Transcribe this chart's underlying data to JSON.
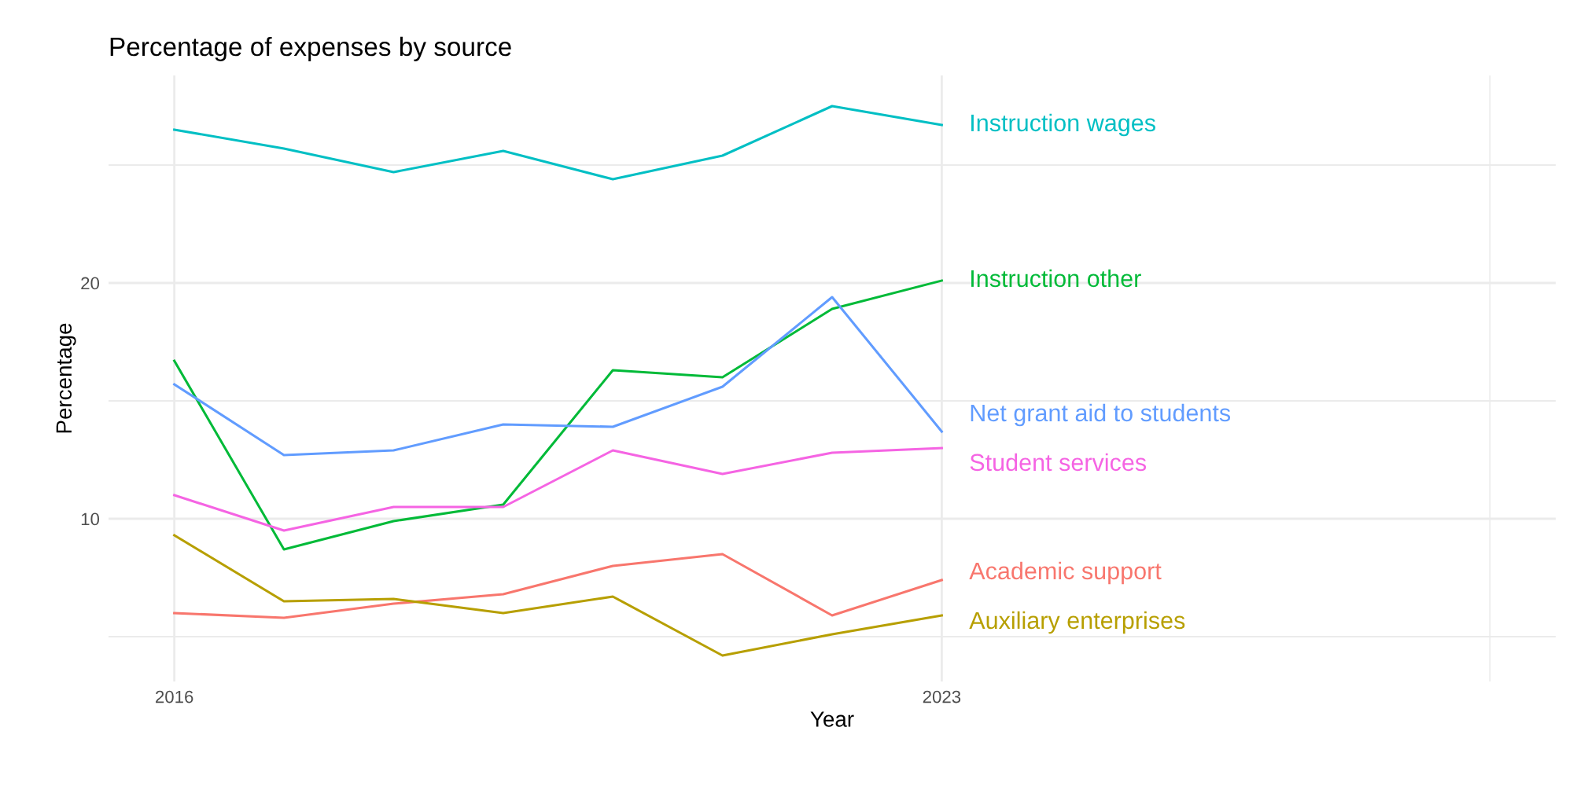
{
  "chart_data": {
    "type": "line",
    "title": "Percentage of expenses by source",
    "xlabel": "Year",
    "ylabel": "Percentage",
    "x": [
      2016,
      2017,
      2018,
      2019,
      2020,
      2021,
      2022,
      2023
    ],
    "series": [
      {
        "name": "Instruction wages",
        "color": "#00bfc4",
        "values": [
          26.5,
          25.7,
          24.7,
          25.6,
          24.4,
          25.4,
          27.5,
          26.7
        ]
      },
      {
        "name": "Instruction other",
        "color": "#00ba38",
        "values": [
          16.7,
          8.7,
          9.9,
          10.6,
          16.3,
          16.0,
          18.9,
          20.1
        ]
      },
      {
        "name": "Net grant aid to students",
        "color": "#619cff",
        "values": [
          15.7,
          12.7,
          12.9,
          14.0,
          13.9,
          15.6,
          19.4,
          13.7
        ]
      },
      {
        "name": "Student services",
        "color": "#f564e3",
        "values": [
          11.0,
          9.5,
          10.5,
          10.5,
          12.9,
          11.9,
          12.8,
          13.0
        ]
      },
      {
        "name": "Academic support",
        "color": "#f8766d",
        "values": [
          6.0,
          5.8,
          6.4,
          6.8,
          8.0,
          8.5,
          5.9,
          7.4
        ]
      },
      {
        "name": "Auxiliary enterprises",
        "color": "#b79f00",
        "values": [
          9.3,
          6.5,
          6.6,
          6.0,
          6.7,
          4.2,
          5.1,
          5.9
        ]
      }
    ],
    "xlim": [
      2015.4,
      2028.6
    ],
    "xticks": [
      2016,
      2023,
      {
        "value": 2028,
        "label": null
      }
    ],
    "ylim": [
      3.1,
      28.8
    ],
    "yticks": [
      {
        "value": 5,
        "label": null
      },
      10,
      {
        "value": 15,
        "label": null
      },
      20,
      {
        "value": 25,
        "label": null
      }
    ],
    "grid": true,
    "legend": false,
    "line_style": "solid"
  }
}
